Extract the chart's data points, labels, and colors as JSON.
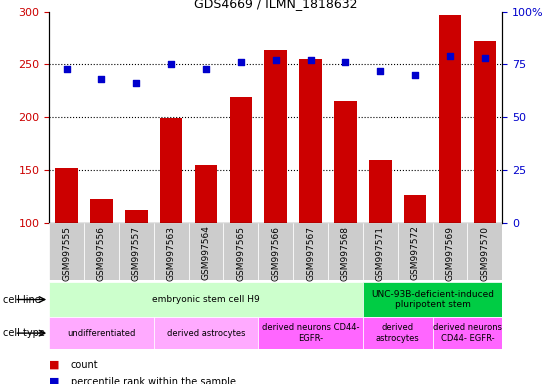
{
  "title": "GDS4669 / ILMN_1818632",
  "samples": [
    "GSM997555",
    "GSM997556",
    "GSM997557",
    "GSM997563",
    "GSM997564",
    "GSM997565",
    "GSM997566",
    "GSM997567",
    "GSM997568",
    "GSM997571",
    "GSM997572",
    "GSM997569",
    "GSM997570"
  ],
  "counts": [
    152,
    122,
    112,
    199,
    155,
    219,
    264,
    255,
    215,
    159,
    126,
    297,
    272
  ],
  "percentiles": [
    73,
    68,
    66,
    75,
    73,
    76,
    77,
    77,
    76,
    72,
    70,
    79,
    78
  ],
  "ylim_left": [
    100,
    300
  ],
  "ylim_right": [
    0,
    100
  ],
  "yticks_left": [
    100,
    150,
    200,
    250,
    300
  ],
  "yticks_right": [
    0,
    25,
    50,
    75,
    100
  ],
  "bar_color": "#cc0000",
  "dot_color": "#0000cc",
  "cell_line_groups": [
    {
      "label": "embryonic stem cell H9",
      "start": 0,
      "end": 8,
      "color": "#ccffcc"
    },
    {
      "label": "UNC-93B-deficient-induced\npluripotent stem",
      "start": 9,
      "end": 12,
      "color": "#00cc44"
    }
  ],
  "cell_type_groups": [
    {
      "label": "undifferentiated",
      "start": 0,
      "end": 2,
      "color": "#ffaaff"
    },
    {
      "label": "derived astrocytes",
      "start": 3,
      "end": 5,
      "color": "#ffaaff"
    },
    {
      "label": "derived neurons CD44-\nEGFR-",
      "start": 6,
      "end": 8,
      "color": "#ff66ff"
    },
    {
      "label": "derived\nastrocytes",
      "start": 9,
      "end": 10,
      "color": "#ff66ff"
    },
    {
      "label": "derived neurons\nCD44- EGFR-",
      "start": 11,
      "end": 12,
      "color": "#ff66ff"
    }
  ],
  "tick_label_color_left": "#cc0000",
  "tick_label_color_right": "#0000cc",
  "sample_bg_color": "#cccccc"
}
